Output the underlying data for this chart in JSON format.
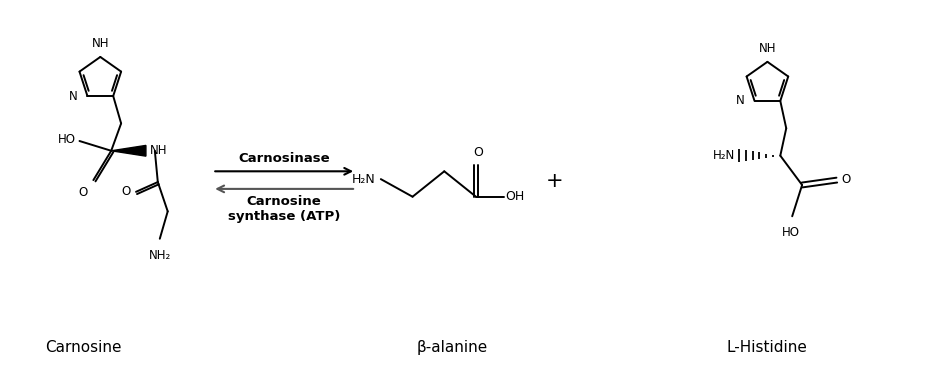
{
  "background_color": "#ffffff",
  "label_fontsize": 11,
  "small_fontsize": 8.5,
  "figsize": [
    9.5,
    3.69
  ],
  "dpi": 100,
  "carnosine_label": "Carnosine",
  "beta_alanine_label": "β-alanine",
  "l_histidine_label": "L-Histidine",
  "enzyme1": "Carnosinase",
  "enzyme2": "Carnosine\nsynthase (ATP)",
  "plus_sign": "+",
  "line_color": "#000000",
  "text_color": "#000000",
  "arrow_color": "#000000",
  "back_arrow_color": "#555555"
}
